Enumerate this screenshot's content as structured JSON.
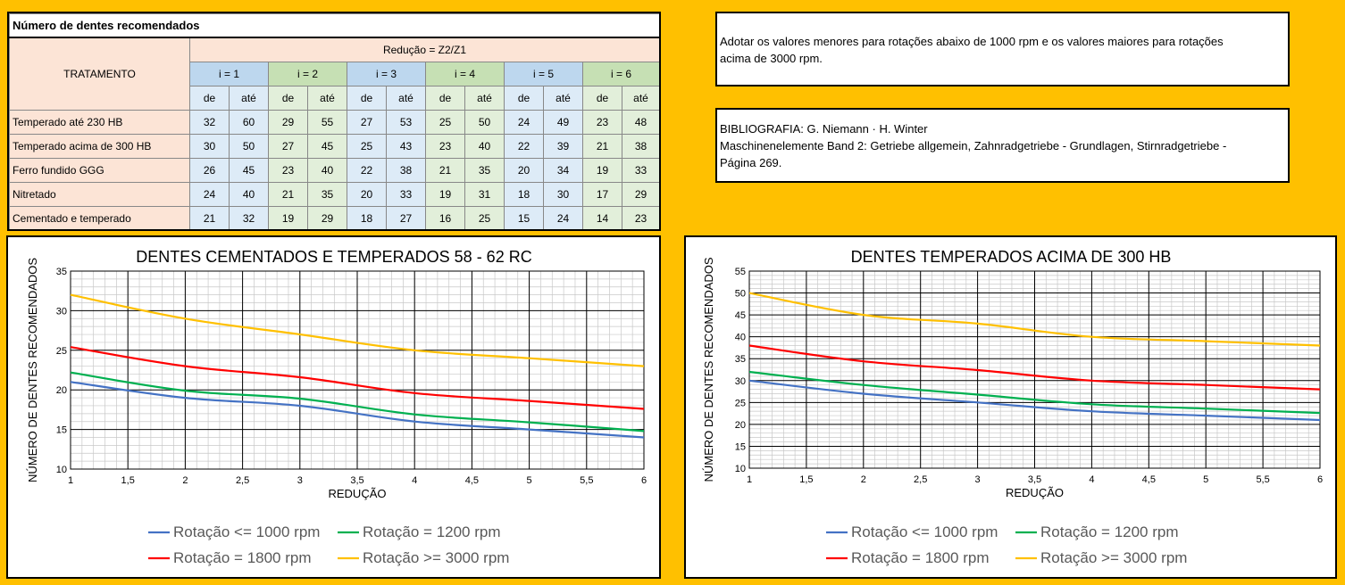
{
  "table": {
    "title": "Número de dentes recomendados",
    "reducao_header": "Redução = Z2/Z1",
    "tratamento_header": "TRATAMENTO",
    "ratio_headers": [
      "i = 1",
      "i = 2",
      "i = 3",
      "i = 4",
      "i = 5",
      "i = 6"
    ],
    "sub_de": "de",
    "sub_ate": "até",
    "rows": [
      {
        "label": "Temperado até 230 HB",
        "values": [
          "32",
          "60",
          "29",
          "55",
          "27",
          "53",
          "25",
          "50",
          "24",
          "49",
          "23",
          "48"
        ]
      },
      {
        "label": "Temperado acima de 300 HB",
        "values": [
          "30",
          "50",
          "27",
          "45",
          "25",
          "43",
          "23",
          "40",
          "22",
          "39",
          "21",
          "38"
        ]
      },
      {
        "label": "Ferro fundido GGG",
        "values": [
          "26",
          "45",
          "23",
          "40",
          "22",
          "38",
          "21",
          "35",
          "20",
          "34",
          "19",
          "33"
        ]
      },
      {
        "label": "Nitretado",
        "values": [
          "24",
          "40",
          "21",
          "35",
          "20",
          "33",
          "19",
          "31",
          "18",
          "30",
          "17",
          "29"
        ]
      },
      {
        "label": "Cementado e temperado",
        "values": [
          "21",
          "32",
          "19",
          "29",
          "18",
          "27",
          "16",
          "25",
          "15",
          "24",
          "14",
          "23"
        ]
      }
    ]
  },
  "note": {
    "line1": "Adotar os valores menores para rotações abaixo de 1000 rpm e os valores maiores para rotações",
    "line2": "acima de 3000 rpm."
  },
  "bibliography": {
    "line1": "BIBLIOGRAFIA: G. Niemann · H. Winter",
    "line2": "Maschinenelemente Band 2: Getriebe allgemein, Zahnradgetriebe - Grundlagen, Stirnradgetriebe -",
    "line3": "Página 269."
  },
  "chart_data": [
    {
      "type": "line",
      "title": "DENTES CEMENTADOS E TEMPERADOS 58 - 62 RC",
      "xlabel": "REDUÇÃO",
      "ylabel": "NÚMERO DE DENTES RECOMENDADOS",
      "xlim": [
        1,
        6
      ],
      "ylim": [
        10,
        35
      ],
      "x_ticks": [
        "1",
        "1,5",
        "2",
        "2,5",
        "3",
        "3,5",
        "4",
        "4,5",
        "5",
        "5,5",
        "6"
      ],
      "y_ticks": [
        "10",
        "15",
        "20",
        "25",
        "30",
        "35"
      ],
      "grid": true,
      "legend_position": "bottom",
      "x": [
        1,
        2,
        3,
        4,
        5,
        6
      ],
      "series": [
        {
          "name": "Rotação <= 1000 rpm",
          "color": "#4472C4",
          "values": [
            21,
            19,
            18,
            16,
            15,
            14
          ]
        },
        {
          "name": "Rotação = 1200 rpm",
          "color": "#00B050",
          "values": [
            22.2,
            19.9,
            18.9,
            16.9,
            15.9,
            14.8
          ]
        },
        {
          "name": "Rotação = 1800 rpm",
          "color": "#FF0000",
          "values": [
            25.4,
            23,
            21.6,
            19.6,
            18.6,
            17.6
          ]
        },
        {
          "name": "Rotação >= 3000 rpm",
          "color": "#FFC000",
          "values": [
            32,
            29,
            27,
            25,
            24,
            23
          ]
        }
      ]
    },
    {
      "type": "line",
      "title": "DENTES TEMPERADOS ACIMA DE 300 HB",
      "xlabel": "REDUÇÃO",
      "ylabel": "NÚMERO DE DENTES RECOMENDADOS",
      "xlim": [
        1,
        6
      ],
      "ylim": [
        10,
        55
      ],
      "x_ticks": [
        "1",
        "1,5",
        "2",
        "2,5",
        "3",
        "3,5",
        "4",
        "4,5",
        "5",
        "5,5",
        "6"
      ],
      "y_ticks": [
        "10",
        "15",
        "20",
        "25",
        "30",
        "35",
        "40",
        "45",
        "50",
        "55"
      ],
      "grid": true,
      "legend_position": "bottom",
      "x": [
        1,
        2,
        3,
        4,
        5,
        6
      ],
      "series": [
        {
          "name": "Rotação <= 1000 rpm",
          "color": "#4472C4",
          "values": [
            30,
            27,
            25,
            23,
            22,
            21
          ]
        },
        {
          "name": "Rotação = 1200 rpm",
          "color": "#00B050",
          "values": [
            32,
            29,
            26.8,
            24.6,
            23.6,
            22.6
          ]
        },
        {
          "name": "Rotação = 1800 rpm",
          "color": "#FF0000",
          "values": [
            38,
            34.4,
            32.4,
            30,
            29,
            28
          ]
        },
        {
          "name": "Rotação >= 3000 rpm",
          "color": "#FFC000",
          "values": [
            50,
            45,
            43,
            40,
            39,
            38
          ]
        }
      ]
    }
  ]
}
